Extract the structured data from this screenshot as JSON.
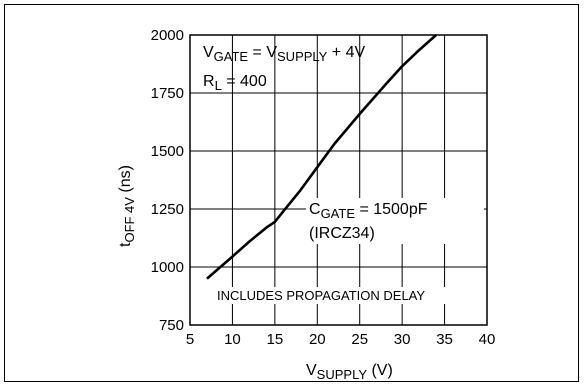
{
  "chart_data": {
    "type": "line",
    "title": "",
    "xlabel": "V_SUPPLY (V)",
    "ylabel": "t_OFF 4V (ns)",
    "xlim": [
      5,
      40
    ],
    "ylim": [
      750,
      2000
    ],
    "xticks": [
      5,
      10,
      15,
      20,
      25,
      30,
      35,
      40
    ],
    "yticks": [
      750,
      1000,
      1250,
      1500,
      1750,
      2000
    ],
    "grid": true,
    "series": [
      {
        "x": [
          7,
          10,
          12,
          14,
          15,
          16,
          18,
          20,
          22,
          25,
          28,
          30,
          32,
          34
        ],
        "y": [
          950,
          1045,
          1110,
          1170,
          1195,
          1240,
          1330,
          1430,
          1530,
          1660,
          1785,
          1865,
          1935,
          2000
        ]
      }
    ],
    "annotations": [
      {
        "base": "V",
        "sub": "GATE",
        "mid": " = V",
        "sub2": "SUPPLY",
        "tail": " + 4V"
      },
      {
        "base": "R",
        "sub": "L",
        "tail": " = 400"
      },
      {
        "base": "C",
        "sub": "GATE",
        "tail": " = 1500pF"
      },
      {
        "text": "(IRCZ34)"
      },
      {
        "text": "INCLUDES PROPAGATION DELAY"
      }
    ],
    "axis_labels": {
      "x_base": "V",
      "x_sub": "SUPPLY",
      "x_tail": " (V)",
      "y_base": "t",
      "y_sub": "OFF 4V",
      "y_tail": " (ns)"
    }
  }
}
